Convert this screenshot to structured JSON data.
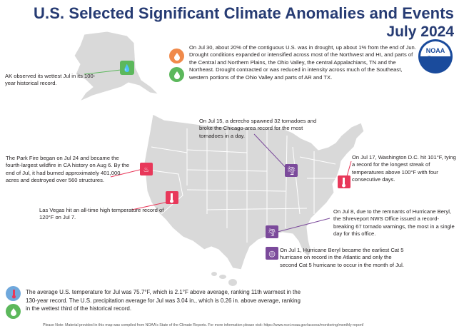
{
  "header": {
    "title_line1": "U.S. Selected Significant Climate Anomalies and Events",
    "title_line2": "July 2024"
  },
  "logo": {
    "label": "NOAA",
    "icon": "noaa-logo"
  },
  "colors": {
    "title": "#263b73",
    "drought_orange": "#f08a4b",
    "precip_green": "#5cb85c",
    "heat_red": "#e8385a",
    "storm_purple": "#7b4a9b",
    "temp_blue": "#6fa8dc",
    "map_fill": "#d9d9d9"
  },
  "annotations": {
    "drought": "On Jul 30, about 20% of the contiguous U.S. was in drought, up about 1% from the end of Jun. Drought conditions expanded or intensified across most of the Northwest and HI, and parts of the Central and Northern Plains, the Ohio Valley, the central Appalachians, TN and the Northeast. Drought contracted or was reduced in intensity across much of the Southeast, western portions of the Ohio Valley and parts of AR and TX.",
    "alaska": "AK observed its wettest Jul in its 100-year historical record.",
    "derecho": "On Jul 15, a derecho spawned 32 tornadoes and broke the Chicago-area record for the most tornadoes in a day.",
    "park_fire": "The Park Fire began on Jul 24 and became the fourth-largest wildfire in CA history on Aug 6. By the end of Jul, it had burned approximately 401,000 acres and destroyed over 560 structures.",
    "washington": "On Jul 17, Washington D.C. hit 101°F, tying a record for the longest streak of temperatures above 100°F with four consecutive days.",
    "las_vegas": "Las Vegas hit an all-time high temperature record of 120°F on Jul 7.",
    "beryl_tornado": "On Jul 8, due to the remnants of Hurricane Beryl, the Shreveport NWS Office issued a record-breaking 67 tornado warnings, the most in a single day for this office.",
    "beryl_hurricane": "On Jul 1, Hurricane Beryl became the earliest Cat 5 hurricane on record in the Atlantic and only the second Cat 5 hurricane to occur in the month of Jul."
  },
  "summary": {
    "temperature": "The average U.S. temperature for Jul was 75.7°F, which is 2.1°F above average, ranking 11th warmest in the 130-year record. The U.S. precipitation average for Jul was 3.04 in., which is 0.26 in. above average, ranking in the wettest third of the historical record."
  },
  "footer": "Please Note: Material provided in this map was compiled from NOAA's State of the Climate Reports. For more information please visit: https://www.ncei.noaa.gov/access/monitoring/monthly-report/"
}
